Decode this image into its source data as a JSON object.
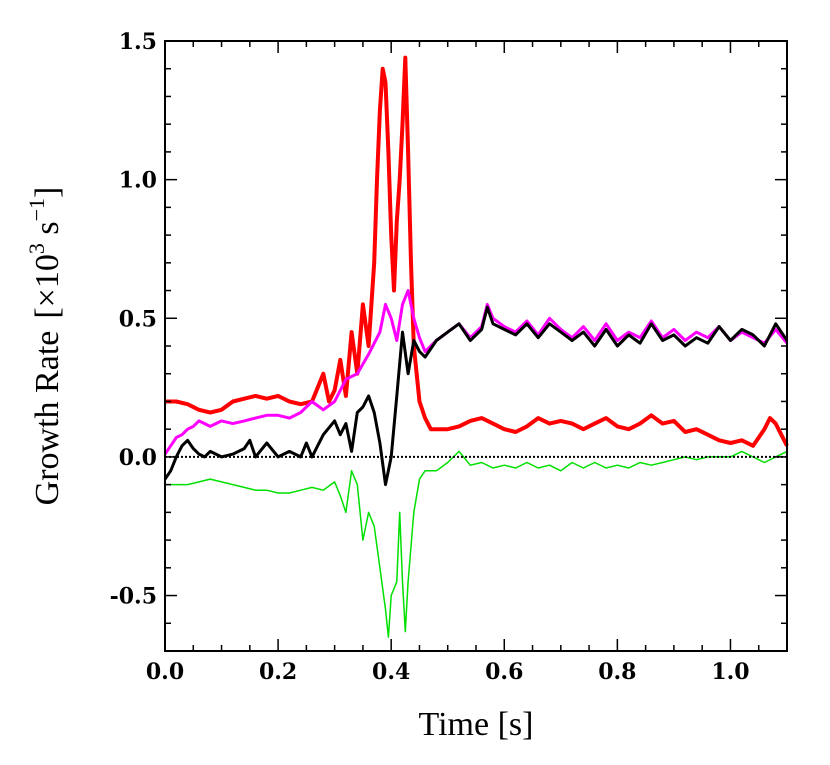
{
  "chart_data": {
    "type": "line",
    "title": "",
    "xlabel": "Time [s]",
    "ylabel_main": "Growth Rate",
    "ylabel_unit_prefix": "[×10",
    "ylabel_unit_exp": "3",
    "ylabel_unit_s": " s",
    "ylabel_unit_exp2": "−1",
    "ylabel_unit_suffix": "]",
    "xlim": [
      0.0,
      1.1
    ],
    "ylim": [
      -0.7,
      1.5
    ],
    "x_ticks": [
      0.0,
      0.2,
      0.4,
      0.6,
      0.8,
      1.0
    ],
    "x_tick_labels": [
      "0.0",
      "0.2",
      "0.4",
      "0.6",
      "0.8",
      "1.0"
    ],
    "y_ticks": [
      -0.5,
      0.0,
      0.5,
      1.0,
      1.5
    ],
    "y_tick_labels": [
      "-0.5",
      "0.0",
      "0.5",
      "1.0",
      "1.5"
    ],
    "grid": false,
    "legend": "none",
    "reference_line": {
      "y": 0.0,
      "style": "dotted",
      "color": "#000000"
    },
    "series": [
      {
        "name": "red",
        "color": "#ff0000",
        "width": 4,
        "points": [
          [
            0.0,
            0.2
          ],
          [
            0.02,
            0.2
          ],
          [
            0.04,
            0.19
          ],
          [
            0.06,
            0.17
          ],
          [
            0.08,
            0.16
          ],
          [
            0.1,
            0.17
          ],
          [
            0.12,
            0.2
          ],
          [
            0.14,
            0.21
          ],
          [
            0.16,
            0.22
          ],
          [
            0.18,
            0.21
          ],
          [
            0.2,
            0.22
          ],
          [
            0.22,
            0.2
          ],
          [
            0.24,
            0.19
          ],
          [
            0.26,
            0.2
          ],
          [
            0.27,
            0.25
          ],
          [
            0.28,
            0.3
          ],
          [
            0.29,
            0.2
          ],
          [
            0.3,
            0.24
          ],
          [
            0.31,
            0.35
          ],
          [
            0.32,
            0.22
          ],
          [
            0.33,
            0.45
          ],
          [
            0.34,
            0.3
          ],
          [
            0.35,
            0.55
          ],
          [
            0.36,
            0.4
          ],
          [
            0.37,
            0.7
          ],
          [
            0.375,
            1.0
          ],
          [
            0.38,
            1.25
          ],
          [
            0.385,
            1.4
          ],
          [
            0.39,
            1.35
          ],
          [
            0.395,
            1.1
          ],
          [
            0.4,
            0.8
          ],
          [
            0.405,
            0.6
          ],
          [
            0.41,
            0.85
          ],
          [
            0.415,
            1.0
          ],
          [
            0.42,
            1.2
          ],
          [
            0.425,
            1.44
          ],
          [
            0.43,
            1.1
          ],
          [
            0.435,
            0.7
          ],
          [
            0.44,
            0.4
          ],
          [
            0.45,
            0.2
          ],
          [
            0.46,
            0.14
          ],
          [
            0.47,
            0.1
          ],
          [
            0.48,
            0.1
          ],
          [
            0.5,
            0.1
          ],
          [
            0.52,
            0.11
          ],
          [
            0.54,
            0.13
          ],
          [
            0.56,
            0.14
          ],
          [
            0.58,
            0.12
          ],
          [
            0.6,
            0.1
          ],
          [
            0.62,
            0.09
          ],
          [
            0.64,
            0.11
          ],
          [
            0.66,
            0.14
          ],
          [
            0.68,
            0.12
          ],
          [
            0.7,
            0.13
          ],
          [
            0.72,
            0.12
          ],
          [
            0.74,
            0.1
          ],
          [
            0.76,
            0.12
          ],
          [
            0.78,
            0.14
          ],
          [
            0.8,
            0.11
          ],
          [
            0.82,
            0.1
          ],
          [
            0.84,
            0.12
          ],
          [
            0.86,
            0.15
          ],
          [
            0.88,
            0.12
          ],
          [
            0.9,
            0.13
          ],
          [
            0.92,
            0.09
          ],
          [
            0.94,
            0.1
          ],
          [
            0.96,
            0.08
          ],
          [
            0.98,
            0.06
          ],
          [
            1.0,
            0.05
          ],
          [
            1.02,
            0.06
          ],
          [
            1.04,
            0.04
          ],
          [
            1.06,
            0.1
          ],
          [
            1.07,
            0.14
          ],
          [
            1.08,
            0.12
          ],
          [
            1.09,
            0.08
          ],
          [
            1.1,
            0.04
          ]
        ]
      },
      {
        "name": "magenta",
        "color": "#ff00ff",
        "width": 3,
        "points": [
          [
            0.0,
            0.01
          ],
          [
            0.01,
            0.04
          ],
          [
            0.02,
            0.07
          ],
          [
            0.03,
            0.08
          ],
          [
            0.04,
            0.1
          ],
          [
            0.05,
            0.11
          ],
          [
            0.06,
            0.13
          ],
          [
            0.07,
            0.12
          ],
          [
            0.08,
            0.11
          ],
          [
            0.1,
            0.13
          ],
          [
            0.12,
            0.12
          ],
          [
            0.14,
            0.13
          ],
          [
            0.16,
            0.14
          ],
          [
            0.18,
            0.15
          ],
          [
            0.2,
            0.15
          ],
          [
            0.22,
            0.14
          ],
          [
            0.24,
            0.16
          ],
          [
            0.26,
            0.2
          ],
          [
            0.28,
            0.17
          ],
          [
            0.3,
            0.2
          ],
          [
            0.32,
            0.28
          ],
          [
            0.34,
            0.3
          ],
          [
            0.36,
            0.37
          ],
          [
            0.38,
            0.45
          ],
          [
            0.39,
            0.55
          ],
          [
            0.4,
            0.5
          ],
          [
            0.41,
            0.42
          ],
          [
            0.42,
            0.55
          ],
          [
            0.43,
            0.6
          ],
          [
            0.44,
            0.5
          ],
          [
            0.45,
            0.43
          ],
          [
            0.46,
            0.38
          ],
          [
            0.47,
            0.4
          ],
          [
            0.48,
            0.42
          ],
          [
            0.5,
            0.45
          ],
          [
            0.52,
            0.48
          ],
          [
            0.54,
            0.43
          ],
          [
            0.56,
            0.47
          ],
          [
            0.57,
            0.55
          ],
          [
            0.58,
            0.5
          ],
          [
            0.6,
            0.47
          ],
          [
            0.62,
            0.45
          ],
          [
            0.64,
            0.49
          ],
          [
            0.66,
            0.44
          ],
          [
            0.68,
            0.5
          ],
          [
            0.7,
            0.46
          ],
          [
            0.72,
            0.43
          ],
          [
            0.74,
            0.47
          ],
          [
            0.76,
            0.42
          ],
          [
            0.78,
            0.48
          ],
          [
            0.8,
            0.42
          ],
          [
            0.82,
            0.45
          ],
          [
            0.84,
            0.43
          ],
          [
            0.86,
            0.49
          ],
          [
            0.88,
            0.43
          ],
          [
            0.9,
            0.46
          ],
          [
            0.92,
            0.42
          ],
          [
            0.94,
            0.45
          ],
          [
            0.96,
            0.43
          ],
          [
            0.98,
            0.47
          ],
          [
            1.0,
            0.42
          ],
          [
            1.02,
            0.45
          ],
          [
            1.04,
            0.43
          ],
          [
            1.06,
            0.41
          ],
          [
            1.08,
            0.46
          ],
          [
            1.1,
            0.41
          ]
        ]
      },
      {
        "name": "black",
        "color": "#000000",
        "width": 3,
        "points": [
          [
            0.0,
            -0.08
          ],
          [
            0.01,
            -0.05
          ],
          [
            0.02,
            0.0
          ],
          [
            0.03,
            0.04
          ],
          [
            0.04,
            0.06
          ],
          [
            0.05,
            0.03
          ],
          [
            0.06,
            0.01
          ],
          [
            0.07,
            0.0
          ],
          [
            0.08,
            0.02
          ],
          [
            0.1,
            0.0
          ],
          [
            0.12,
            0.01
          ],
          [
            0.14,
            0.03
          ],
          [
            0.15,
            0.06
          ],
          [
            0.16,
            0.0
          ],
          [
            0.18,
            0.05
          ],
          [
            0.2,
            0.0
          ],
          [
            0.22,
            0.02
          ],
          [
            0.24,
            0.0
          ],
          [
            0.25,
            0.05
          ],
          [
            0.26,
            0.0
          ],
          [
            0.28,
            0.08
          ],
          [
            0.3,
            0.13
          ],
          [
            0.31,
            0.08
          ],
          [
            0.32,
            0.12
          ],
          [
            0.33,
            0.02
          ],
          [
            0.34,
            0.16
          ],
          [
            0.35,
            0.18
          ],
          [
            0.36,
            0.22
          ],
          [
            0.37,
            0.16
          ],
          [
            0.38,
            0.05
          ],
          [
            0.39,
            -0.1
          ],
          [
            0.4,
            0.0
          ],
          [
            0.41,
            0.22
          ],
          [
            0.42,
            0.45
          ],
          [
            0.43,
            0.3
          ],
          [
            0.44,
            0.42
          ],
          [
            0.45,
            0.38
          ],
          [
            0.46,
            0.36
          ],
          [
            0.48,
            0.42
          ],
          [
            0.5,
            0.45
          ],
          [
            0.52,
            0.48
          ],
          [
            0.54,
            0.42
          ],
          [
            0.56,
            0.46
          ],
          [
            0.57,
            0.54
          ],
          [
            0.58,
            0.48
          ],
          [
            0.6,
            0.46
          ],
          [
            0.62,
            0.44
          ],
          [
            0.64,
            0.48
          ],
          [
            0.66,
            0.43
          ],
          [
            0.68,
            0.48
          ],
          [
            0.7,
            0.45
          ],
          [
            0.72,
            0.42
          ],
          [
            0.74,
            0.45
          ],
          [
            0.76,
            0.4
          ],
          [
            0.78,
            0.46
          ],
          [
            0.8,
            0.4
          ],
          [
            0.82,
            0.44
          ],
          [
            0.84,
            0.41
          ],
          [
            0.86,
            0.48
          ],
          [
            0.88,
            0.42
          ],
          [
            0.9,
            0.44
          ],
          [
            0.92,
            0.4
          ],
          [
            0.94,
            0.43
          ],
          [
            0.96,
            0.41
          ],
          [
            0.98,
            0.47
          ],
          [
            1.0,
            0.42
          ],
          [
            1.02,
            0.46
          ],
          [
            1.04,
            0.44
          ],
          [
            1.06,
            0.4
          ],
          [
            1.08,
            0.48
          ],
          [
            1.1,
            0.42
          ]
        ]
      },
      {
        "name": "green",
        "color": "#00e000",
        "width": 1.5,
        "points": [
          [
            0.0,
            -0.1
          ],
          [
            0.02,
            -0.1
          ],
          [
            0.04,
            -0.1
          ],
          [
            0.06,
            -0.09
          ],
          [
            0.08,
            -0.08
          ],
          [
            0.1,
            -0.09
          ],
          [
            0.12,
            -0.1
          ],
          [
            0.14,
            -0.11
          ],
          [
            0.16,
            -0.12
          ],
          [
            0.18,
            -0.12
          ],
          [
            0.2,
            -0.13
          ],
          [
            0.22,
            -0.13
          ],
          [
            0.24,
            -0.12
          ],
          [
            0.26,
            -0.11
          ],
          [
            0.28,
            -0.12
          ],
          [
            0.3,
            -0.09
          ],
          [
            0.31,
            -0.14
          ],
          [
            0.32,
            -0.2
          ],
          [
            0.33,
            -0.05
          ],
          [
            0.34,
            -0.1
          ],
          [
            0.35,
            -0.3
          ],
          [
            0.36,
            -0.2
          ],
          [
            0.37,
            -0.25
          ],
          [
            0.38,
            -0.4
          ],
          [
            0.39,
            -0.55
          ],
          [
            0.395,
            -0.65
          ],
          [
            0.4,
            -0.5
          ],
          [
            0.41,
            -0.45
          ],
          [
            0.415,
            -0.2
          ],
          [
            0.42,
            -0.45
          ],
          [
            0.425,
            -0.63
          ],
          [
            0.43,
            -0.45
          ],
          [
            0.44,
            -0.2
          ],
          [
            0.45,
            -0.08
          ],
          [
            0.46,
            -0.05
          ],
          [
            0.48,
            -0.05
          ],
          [
            0.5,
            -0.02
          ],
          [
            0.52,
            0.02
          ],
          [
            0.54,
            -0.03
          ],
          [
            0.56,
            -0.02
          ],
          [
            0.58,
            -0.04
          ],
          [
            0.6,
            -0.03
          ],
          [
            0.62,
            -0.04
          ],
          [
            0.64,
            -0.02
          ],
          [
            0.66,
            -0.04
          ],
          [
            0.68,
            -0.03
          ],
          [
            0.7,
            -0.05
          ],
          [
            0.72,
            -0.02
          ],
          [
            0.74,
            -0.04
          ],
          [
            0.76,
            -0.02
          ],
          [
            0.78,
            -0.04
          ],
          [
            0.8,
            -0.03
          ],
          [
            0.82,
            -0.04
          ],
          [
            0.84,
            -0.02
          ],
          [
            0.86,
            -0.03
          ],
          [
            0.88,
            -0.02
          ],
          [
            0.9,
            -0.01
          ],
          [
            0.92,
            0.0
          ],
          [
            0.94,
            -0.01
          ],
          [
            0.96,
            0.0
          ],
          [
            0.98,
            0.0
          ],
          [
            1.0,
            0.0
          ],
          [
            1.02,
            0.02
          ],
          [
            1.04,
            0.0
          ],
          [
            1.06,
            -0.02
          ],
          [
            1.08,
            0.0
          ],
          [
            1.1,
            0.02
          ]
        ]
      }
    ]
  }
}
